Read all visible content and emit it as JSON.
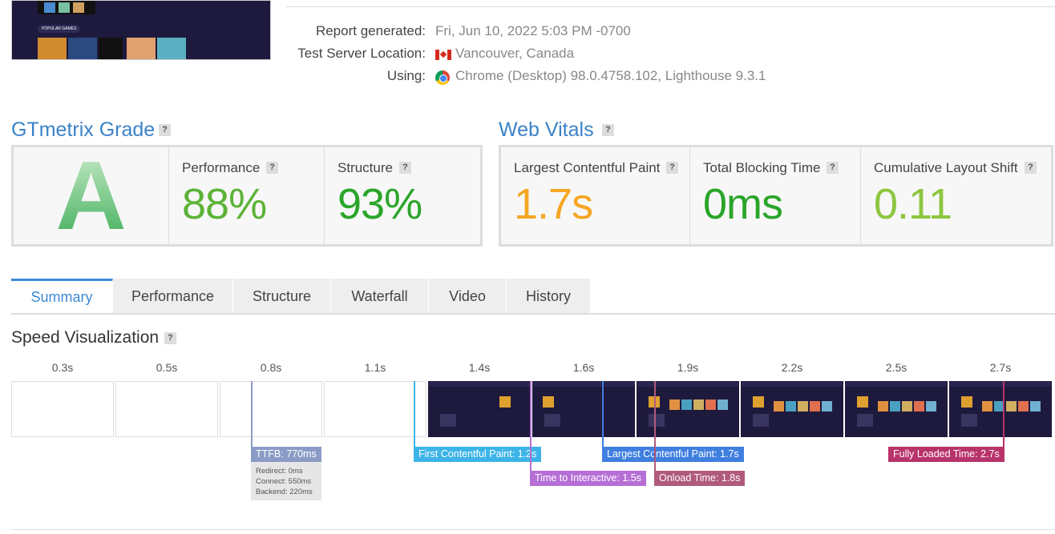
{
  "thumbnail": {
    "label": "POPULAR GAMES"
  },
  "report": {
    "rows": [
      {
        "label": "Report generated:",
        "value": "Fri, Jun 10, 2022 5:03 PM -0700"
      },
      {
        "label": "Test Server Location:",
        "value": "Vancouver, Canada"
      },
      {
        "label": "Using:",
        "value": "Chrome (Desktop) 98.0.4758.102, Lighthouse 9.3.1"
      }
    ]
  },
  "grade": {
    "title": "GTmetrix Grade",
    "help": "?",
    "letter": "A",
    "metrics": [
      {
        "label": "Performance",
        "value": "88%",
        "color": "#5cb338"
      },
      {
        "label": "Structure",
        "value": "93%",
        "color": "#2aa52a"
      }
    ]
  },
  "vitals": {
    "title": "Web Vitals",
    "help": "?",
    "metrics": [
      {
        "label": "Largest Contentful Paint",
        "value": "1.7s",
        "color": "#f5a623"
      },
      {
        "label": "Total Blocking Time",
        "value": "0ms",
        "color": "#2aa52a"
      },
      {
        "label": "Cumulative Layout Shift",
        "value": "0.11",
        "color": "#8cc63f"
      }
    ]
  },
  "tabs": {
    "items": [
      "Summary",
      "Performance",
      "Structure",
      "Waterfall",
      "Video",
      "History"
    ],
    "active": 0
  },
  "speed": {
    "title": "Speed Visualization",
    "help": "?",
    "frames": [
      "0.3s",
      "0.5s",
      "0.8s",
      "1.1s",
      "1.4s",
      "1.6s",
      "1.9s",
      "2.2s",
      "2.5s",
      "2.7s"
    ],
    "markers": [
      {
        "label": "TTFB: 770ms",
        "color": "#8a9cc6",
        "details": [
          "Redirect: 0ms",
          "Connect: 550ms",
          "Backend: 220ms"
        ]
      },
      {
        "label": "First Contentful Paint: 1.2s",
        "color": "#3cb4e8"
      },
      {
        "label": "Time to Interactive: 1.5s",
        "color": "#b56fd6"
      },
      {
        "label": "Largest Contentful Paint: 1.7s",
        "color": "#3f7fe0"
      },
      {
        "label": "Onload Time: 1.8s",
        "color": "#b05a7c"
      },
      {
        "label": "Fully Loaded Time: 2.7s",
        "color": "#b8336a"
      }
    ]
  }
}
